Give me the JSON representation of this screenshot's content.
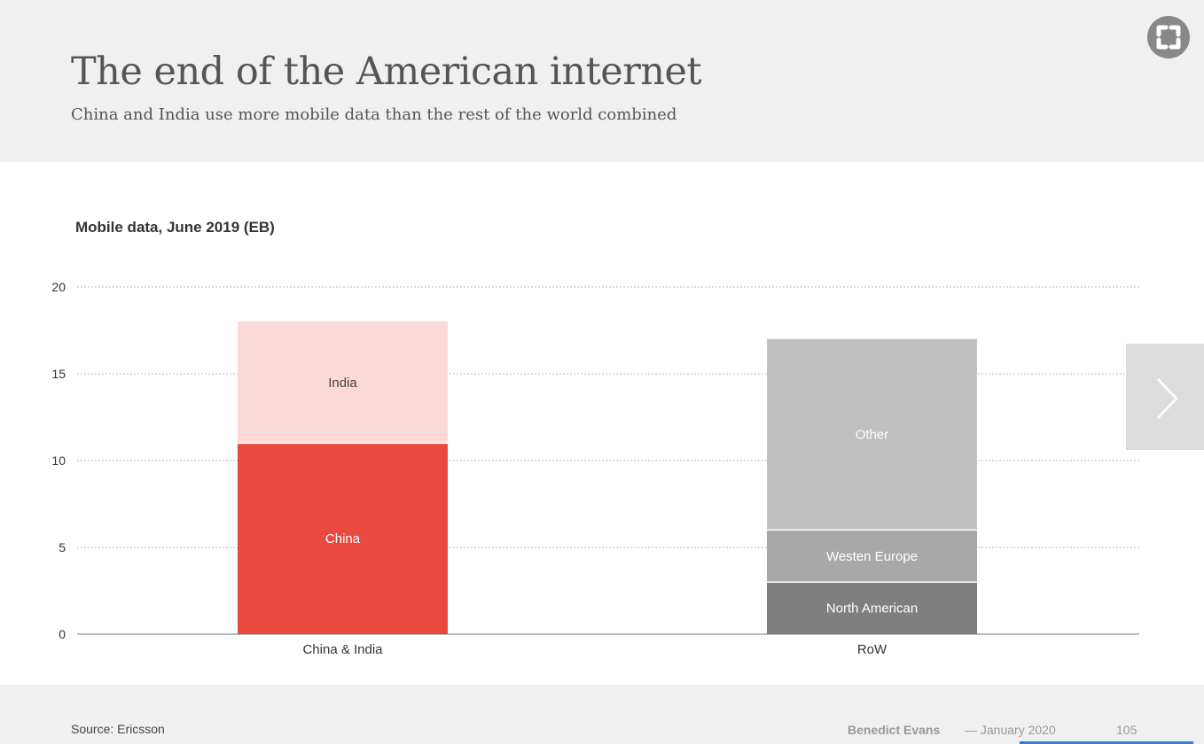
{
  "header": {
    "title": "The end of the American internet",
    "subtitle": "China and India use more mobile data than the rest of the world combined"
  },
  "icons": {
    "expand": "expand-icon",
    "next": "chevron-right-icon"
  },
  "chart_data": {
    "type": "bar",
    "stacked": true,
    "title": "Mobile data, June 2019 (EB)",
    "xlabel": "",
    "ylabel": "",
    "ylim": [
      0,
      20
    ],
    "yticks": [
      0,
      5,
      10,
      15,
      20
    ],
    "grid": true,
    "legend": "none",
    "categories": [
      "China & India",
      "RoW"
    ],
    "series": [
      {
        "name": "China",
        "values": [
          11,
          0
        ],
        "color": "#e84a40",
        "label_color": "#ffffff"
      },
      {
        "name": "India",
        "values": [
          7,
          0
        ],
        "color": "#fbd9d6",
        "label_color": "#444444"
      },
      {
        "name": "North American",
        "values": [
          0,
          3
        ],
        "color": "#7f7f7f",
        "label_color": "#ffffff"
      },
      {
        "name": "Westen Europe",
        "values": [
          0,
          3
        ],
        "color": "#a8a8a8",
        "label_color": "#ffffff"
      },
      {
        "name": "Other",
        "values": [
          0,
          11
        ],
        "color": "#bfbfbf",
        "label_color": "#ffffff"
      }
    ]
  },
  "footer": {
    "source": "Source: Ericsson",
    "author": "Benedict Evans",
    "date": "— January 2020",
    "page": "105"
  },
  "colors": {
    "header_bg": "#f0f0f0",
    "accent": "#3a7bd5"
  }
}
